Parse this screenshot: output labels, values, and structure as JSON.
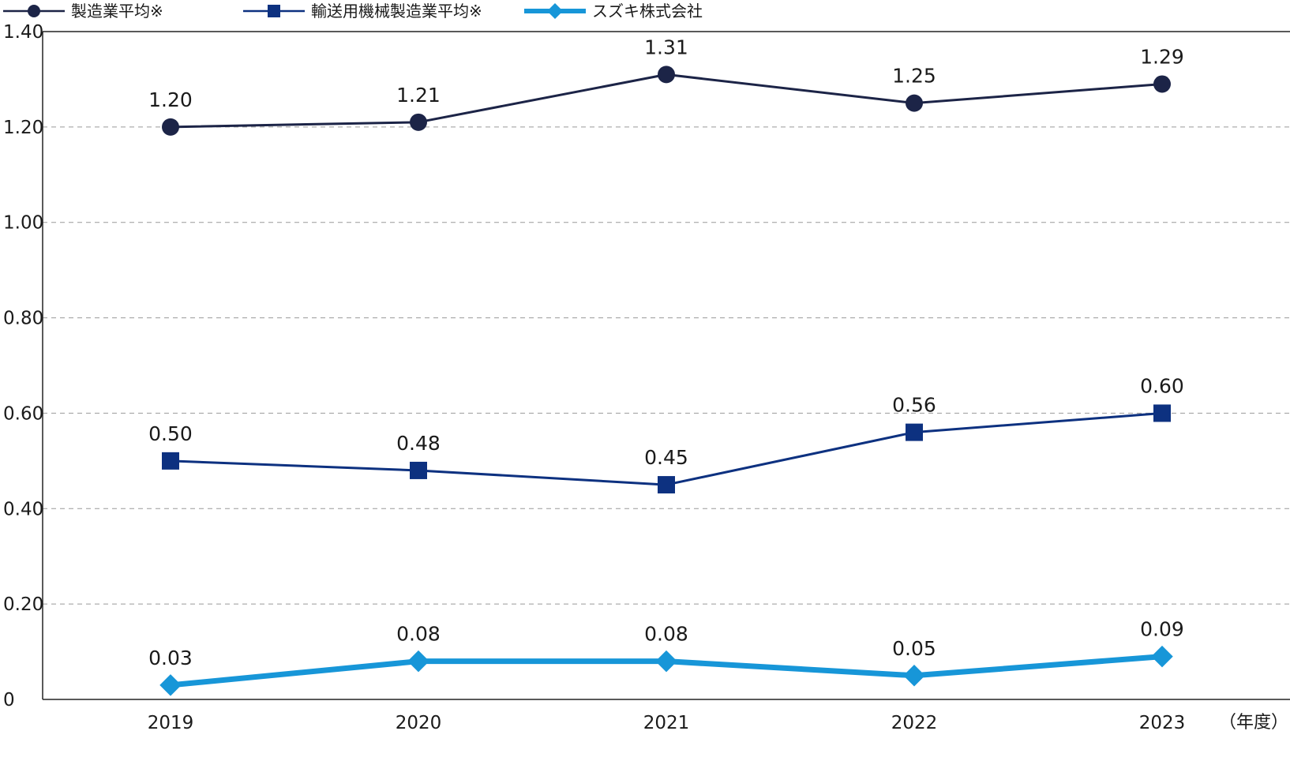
{
  "chart_data": {
    "type": "line",
    "categories": [
      "2019",
      "2020",
      "2021",
      "2022",
      "2023"
    ],
    "x_unit_label": "（年度）",
    "ylim": [
      0,
      1.4
    ],
    "y_ticks": [
      "0",
      "0.20",
      "0.40",
      "0.60",
      "0.80",
      "1.00",
      "1.20",
      "1.40"
    ],
    "y_tick_values": [
      0,
      0.2,
      0.4,
      0.6,
      0.8,
      1.0,
      1.2,
      1.4
    ],
    "grid": "horizontal-dashed",
    "legend_position": "top-left",
    "series": [
      {
        "name": "製造業平均※",
        "marker": "circle",
        "color": "#1c2447",
        "values": [
          1.2,
          1.21,
          1.31,
          1.25,
          1.29
        ],
        "labels": [
          "1.20",
          "1.21",
          "1.31",
          "1.25",
          "1.29"
        ]
      },
      {
        "name": "輸送用機械製造業平均※",
        "marker": "square",
        "color": "#0d3180",
        "values": [
          0.5,
          0.48,
          0.45,
          0.56,
          0.6
        ],
        "labels": [
          "0.50",
          "0.48",
          "0.45",
          "0.56",
          "0.60"
        ]
      },
      {
        "name": "スズキ株式会社",
        "marker": "diamond",
        "color": "#1796d8",
        "values": [
          0.03,
          0.08,
          0.08,
          0.05,
          0.09
        ],
        "labels": [
          "0.03",
          "0.08",
          "0.08",
          "0.05",
          "0.09"
        ]
      }
    ]
  }
}
